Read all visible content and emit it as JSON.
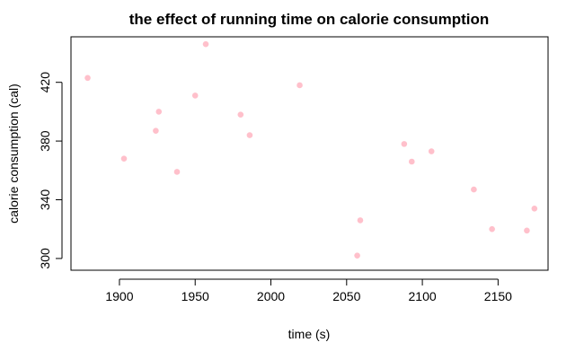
{
  "chart_data": {
    "type": "scatter",
    "title": "the effect of running time on calorie consumption",
    "xlabel": "time (s)",
    "ylabel": "calorie consumption (cal)",
    "xlim": [
      1868,
      2183
    ],
    "ylim": [
      292,
      451
    ],
    "xticks": [
      1900,
      1950,
      2000,
      2050,
      2100,
      2150
    ],
    "yticks": [
      300,
      340,
      380,
      420
    ],
    "point_color": "#ffc0cb",
    "grid": false,
    "legend": "none",
    "x": [
      1879,
      1903,
      1924,
      1926,
      1938,
      1950,
      1957,
      1980,
      1986,
      2019,
      2057,
      2059,
      2088,
      2093,
      2106,
      2134,
      2146,
      2169,
      2174
    ],
    "y": [
      423,
      368,
      387,
      400,
      359,
      411,
      446,
      398,
      384,
      418,
      302,
      326,
      378,
      366,
      373,
      347,
      320,
      319,
      334
    ]
  }
}
